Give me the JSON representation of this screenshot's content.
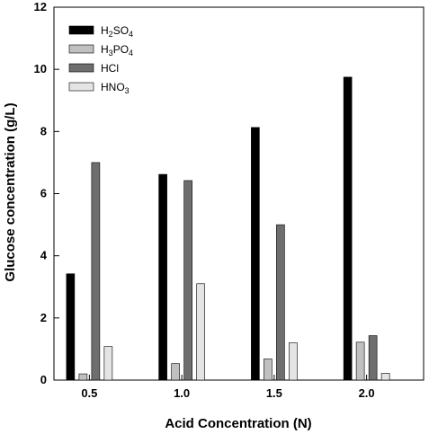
{
  "chart_data": {
    "type": "bar",
    "xlabel": "Acid Concentration (N)",
    "ylabel": "Glucose concentration (g/L)",
    "categories": [
      "0.5",
      "1.0",
      "1.5",
      "2.0"
    ],
    "ylim": [
      0,
      12
    ],
    "yticks": [
      "0",
      "2",
      "4",
      "6",
      "8",
      "10",
      "12"
    ],
    "legend_position": "top-left",
    "grid": false,
    "series": [
      {
        "name": "H2SO4",
        "label_main": "H",
        "label_sub1": "2",
        "label_mid": "SO",
        "label_sub2": "4",
        "label_end": "",
        "color": "#000000",
        "values": [
          3.42,
          6.62,
          8.13,
          9.75
        ]
      },
      {
        "name": "H3PO4",
        "label_main": "H",
        "label_sub1": "3",
        "label_mid": "PO",
        "label_sub2": "4",
        "label_end": "",
        "color": "#c0c0c0",
        "values": [
          0.2,
          0.53,
          0.68,
          1.22
        ]
      },
      {
        "name": "HCl",
        "label_main": "HCl",
        "label_sub1": "",
        "label_mid": "",
        "label_sub2": "",
        "label_end": "",
        "color": "#6e6e6e",
        "values": [
          7.0,
          6.42,
          5.0,
          1.43
        ]
      },
      {
        "name": "HNO3",
        "label_main": "HNO",
        "label_sub1": "",
        "label_mid": "",
        "label_sub2": "3",
        "label_end": "",
        "color": "#e4e4e4",
        "values": [
          1.08,
          3.1,
          1.2,
          0.22
        ]
      }
    ]
  }
}
